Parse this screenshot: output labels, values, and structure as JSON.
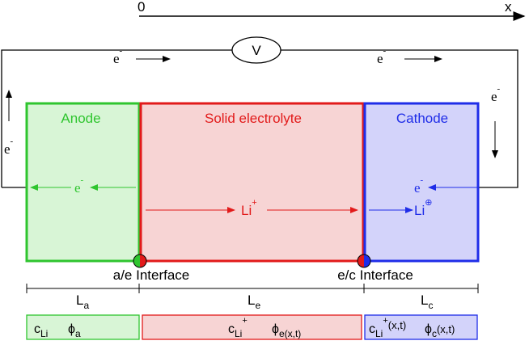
{
  "axis": {
    "origin": "0",
    "label": "x"
  },
  "circuit": {
    "voltmeter": "V",
    "electrons": [
      {
        "base": "e",
        "sup": "-"
      },
      {
        "base": "e",
        "sup": "-"
      },
      {
        "base": "e",
        "sup": "-"
      },
      {
        "base": "e",
        "sup": "-"
      }
    ]
  },
  "regions": [
    {
      "name": "Anode",
      "carrier": {
        "base": "e",
        "sup": "-"
      }
    },
    {
      "name": "Solid electrolyte",
      "carrier": {
        "base": "Li",
        "sup": "+"
      }
    },
    {
      "name": "Cathode",
      "carrier": {
        "base": "e",
        "sup": "-"
      },
      "ion": {
        "base": "Li",
        "sup": "⊕"
      }
    }
  ],
  "interfaces": [
    "a/e Interface",
    "e/c Interface"
  ],
  "lengths": [
    {
      "base": "L",
      "sub": "a"
    },
    {
      "base": "L",
      "sub": "e"
    },
    {
      "base": "L",
      "sub": "c"
    }
  ],
  "variables": [
    [
      {
        "base": "c",
        "sub": "Li"
      },
      {
        "base": "ϕ",
        "sub": "a"
      }
    ],
    [
      {
        "base": "c",
        "sub": "Li",
        "sup": "+"
      },
      {
        "base": "ϕ",
        "sub": "e(x,t)"
      }
    ],
    [
      {
        "base": "c",
        "sub": "Li",
        "sup": "+",
        "tail": "(x,t)"
      },
      {
        "base": "ϕ",
        "sub": "c",
        "tail": "(x,t)"
      }
    ]
  ]
}
